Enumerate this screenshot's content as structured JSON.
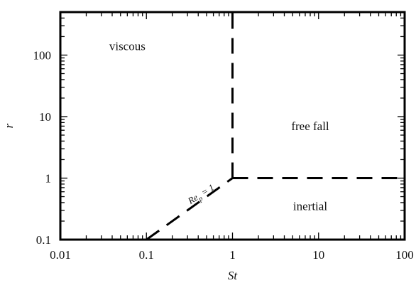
{
  "chart_data": {
    "type": "line",
    "x_scale": "log",
    "y_scale": "log",
    "xlim": [
      0.01,
      100
    ],
    "ylim": [
      0.1,
      500
    ],
    "xlabel": "St",
    "ylabel": "r",
    "x_ticks": [
      {
        "value": 0.01,
        "label": "0.01"
      },
      {
        "value": 0.1,
        "label": "0.1"
      },
      {
        "value": 1,
        "label": "1"
      },
      {
        "value": 10,
        "label": "10"
      },
      {
        "value": 100,
        "label": "100"
      }
    ],
    "y_ticks": [
      {
        "value": 0.1,
        "label": "0.1"
      },
      {
        "value": 1,
        "label": "1"
      },
      {
        "value": 10,
        "label": "10"
      },
      {
        "value": 100,
        "label": "100"
      }
    ],
    "series": [
      {
        "style": "dashed",
        "color": "#000000",
        "x": [
          0.1,
          1
        ],
        "y": [
          0.1,
          1
        ]
      },
      {
        "style": "dashed",
        "color": "#000000",
        "x": [
          1,
          1
        ],
        "y": [
          1,
          500
        ]
      },
      {
        "style": "dashed",
        "color": "#000000",
        "x": [
          1,
          100
        ],
        "y": [
          1,
          1
        ]
      }
    ],
    "annotations": [
      {
        "text": "Re_p = 1",
        "x": 0.45,
        "y": 0.5,
        "rotation_deg": -32
      },
      {
        "text": "viscous",
        "x": 0.06,
        "y": 120
      },
      {
        "text": "free fall",
        "x": 8,
        "y": 6
      },
      {
        "text": "inertial",
        "x": 8,
        "y": 0.3
      }
    ],
    "grid": false,
    "legend": false
  }
}
